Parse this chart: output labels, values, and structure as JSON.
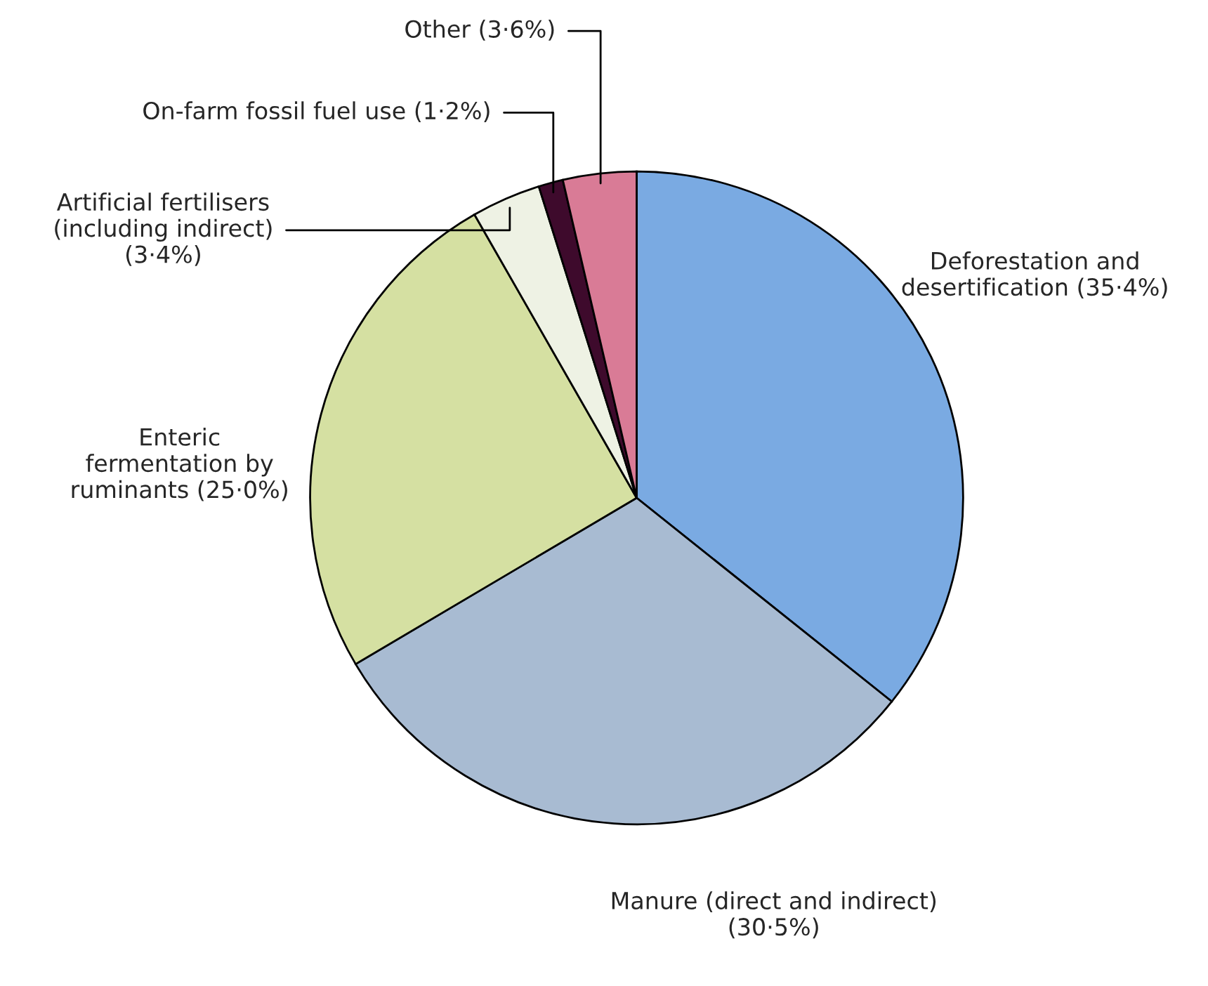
{
  "chart_data": {
    "type": "pie",
    "categories": [
      "Deforestation and\ndesertification (35·4%)",
      "Manure (direct and indirect)\n(30·5%)",
      "Enteric\nfermentation by\nruminants (25·0%)",
      "Artificial fertilisers\n(including indirect)\n(3·4%)",
      "On-farm fossil fuel use (1·2%)",
      "Other (3·6%)"
    ],
    "values": [
      35.4,
      30.5,
      25.0,
      3.4,
      1.2,
      3.6
    ],
    "colors": [
      "#7aaae2",
      "#a8bbd2",
      "#d5e0a2",
      "#eef2e4",
      "#3e0a2c",
      "#d97b96"
    ],
    "legend": false
  }
}
